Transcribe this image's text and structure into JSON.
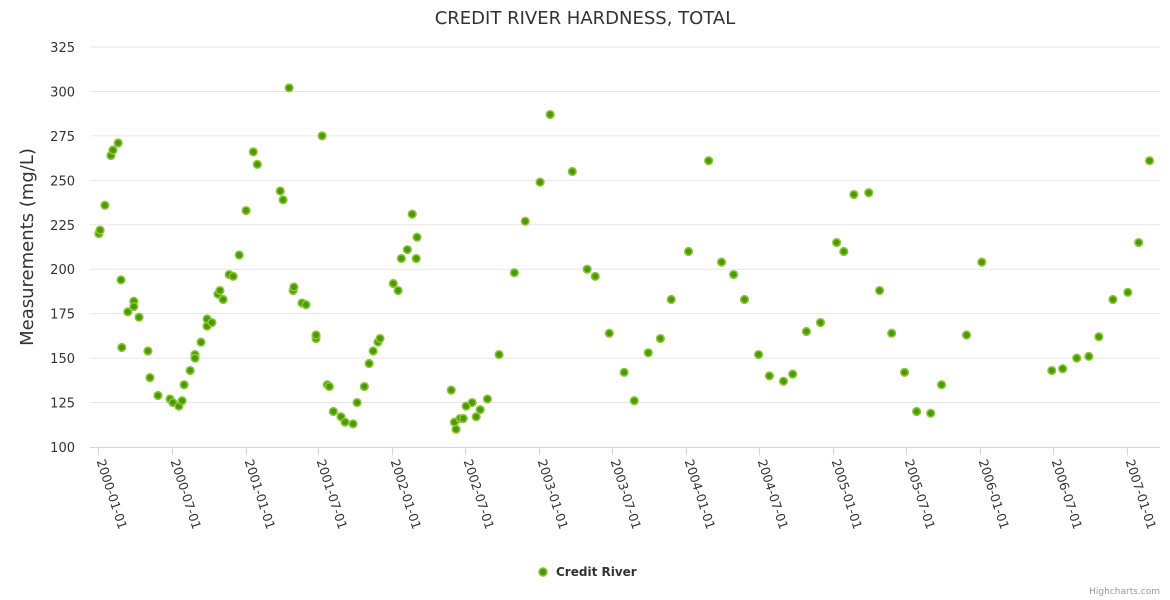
{
  "chart_data": {
    "type": "scatter",
    "title": "CREDIT RIVER HARDNESS, TOTAL",
    "xlabel": "",
    "ylabel": "Measurements (mg/L)",
    "ylim": [
      100,
      325
    ],
    "yticks": [
      100,
      125,
      150,
      175,
      200,
      225,
      250,
      275,
      300,
      325
    ],
    "xlim": [
      "1999-12-11",
      "2007-03-24"
    ],
    "xticks": [
      "2000-01-01",
      "2000-07-01",
      "2001-01-01",
      "2001-07-01",
      "2002-01-01",
      "2002-07-01",
      "2003-01-01",
      "2003-07-01",
      "2004-01-01",
      "2004-07-01",
      "2005-01-01",
      "2005-07-01",
      "2006-01-01",
      "2006-07-01",
      "2007-01-01"
    ],
    "grid": true,
    "legend_placement": "bottom-center",
    "colors": {
      "marker_fill": "#4a9a00",
      "marker_stroke": "#8cc43c"
    },
    "series": [
      {
        "name": "Credit River",
        "points": [
          [
            "2000-01-02",
            220
          ],
          [
            "2000-01-05",
            222
          ],
          [
            "2000-01-17",
            236
          ],
          [
            "2000-02-01",
            264
          ],
          [
            "2000-02-06",
            267
          ],
          [
            "2000-02-19",
            271
          ],
          [
            "2000-02-26",
            194
          ],
          [
            "2000-02-28",
            156
          ],
          [
            "2000-03-14",
            176
          ],
          [
            "2000-03-29",
            182
          ],
          [
            "2000-03-29",
            179
          ],
          [
            "2000-04-11",
            173
          ],
          [
            "2000-05-03",
            154
          ],
          [
            "2000-05-08",
            139
          ],
          [
            "2000-05-28",
            129
          ],
          [
            "2000-06-27",
            127
          ],
          [
            "2000-07-04",
            125
          ],
          [
            "2000-07-19",
            123
          ],
          [
            "2000-07-27",
            126
          ],
          [
            "2000-08-01",
            135
          ],
          [
            "2000-08-16",
            143
          ],
          [
            "2000-08-28",
            152
          ],
          [
            "2000-08-28",
            150
          ],
          [
            "2000-09-12",
            159
          ],
          [
            "2000-09-27",
            168
          ],
          [
            "2000-09-27",
            172
          ],
          [
            "2000-10-09",
            170
          ],
          [
            "2000-10-24",
            186
          ],
          [
            "2000-10-29",
            188
          ],
          [
            "2000-11-06",
            183
          ],
          [
            "2000-11-21",
            197
          ],
          [
            "2000-12-01",
            196
          ],
          [
            "2000-12-16",
            208
          ],
          [
            "2001-01-02",
            233
          ],
          [
            "2001-01-20",
            266
          ],
          [
            "2001-01-30",
            259
          ],
          [
            "2001-03-28",
            244
          ],
          [
            "2001-04-04",
            239
          ],
          [
            "2001-04-19",
            302
          ],
          [
            "2001-04-29",
            188
          ],
          [
            "2001-05-01",
            190
          ],
          [
            "2001-05-21",
            181
          ],
          [
            "2001-05-31",
            180
          ],
          [
            "2001-06-25",
            161
          ],
          [
            "2001-06-25",
            163
          ],
          [
            "2001-07-10",
            275
          ],
          [
            "2001-07-23",
            135
          ],
          [
            "2001-07-28",
            134
          ],
          [
            "2001-08-07",
            120
          ],
          [
            "2001-08-26",
            117
          ],
          [
            "2001-09-05",
            114
          ],
          [
            "2001-09-25",
            113
          ],
          [
            "2001-10-05",
            125
          ],
          [
            "2001-10-23",
            134
          ],
          [
            "2001-11-04",
            147
          ],
          [
            "2001-11-14",
            154
          ],
          [
            "2001-11-26",
            159
          ],
          [
            "2001-12-01",
            161
          ],
          [
            "2002-01-03",
            192
          ],
          [
            "2002-01-15",
            188
          ],
          [
            "2002-01-23",
            206
          ],
          [
            "2002-02-07",
            211
          ],
          [
            "2002-02-19",
            231
          ],
          [
            "2002-03-01",
            206
          ],
          [
            "2002-03-03",
            218
          ],
          [
            "2002-05-27",
            132
          ],
          [
            "2002-06-04",
            114
          ],
          [
            "2002-06-08",
            110
          ],
          [
            "2002-06-18",
            116
          ],
          [
            "2002-06-26",
            116
          ],
          [
            "2002-07-03",
            123
          ],
          [
            "2002-07-18",
            125
          ],
          [
            "2002-07-28",
            117
          ],
          [
            "2002-08-07",
            121
          ],
          [
            "2002-08-25",
            127
          ],
          [
            "2002-09-23",
            152
          ],
          [
            "2002-10-31",
            198
          ],
          [
            "2002-11-27",
            227
          ],
          [
            "2003-01-03",
            249
          ],
          [
            "2003-01-28",
            287
          ],
          [
            "2003-03-24",
            255
          ],
          [
            "2003-04-30",
            200
          ],
          [
            "2003-05-20",
            196
          ],
          [
            "2003-06-24",
            164
          ],
          [
            "2003-07-31",
            142
          ],
          [
            "2003-08-25",
            126
          ],
          [
            "2003-09-29",
            153
          ],
          [
            "2003-10-29",
            161
          ],
          [
            "2003-11-25",
            183
          ],
          [
            "2004-01-07",
            210
          ],
          [
            "2004-02-26",
            261
          ],
          [
            "2004-03-29",
            204
          ],
          [
            "2004-04-28",
            197
          ],
          [
            "2004-05-25",
            183
          ],
          [
            "2004-06-29",
            152
          ],
          [
            "2004-07-26",
            140
          ],
          [
            "2004-08-30",
            137
          ],
          [
            "2004-09-22",
            141
          ],
          [
            "2004-10-26",
            165
          ],
          [
            "2004-11-30",
            170
          ],
          [
            "2005-01-09",
            215
          ],
          [
            "2005-01-27",
            210
          ],
          [
            "2005-02-21",
            242
          ],
          [
            "2005-03-30",
            243
          ],
          [
            "2005-04-26",
            188
          ],
          [
            "2005-05-26",
            164
          ],
          [
            "2005-06-27",
            142
          ],
          [
            "2005-07-27",
            120
          ],
          [
            "2005-08-31",
            119
          ],
          [
            "2005-09-27",
            135
          ],
          [
            "2005-11-28",
            163
          ],
          [
            "2006-01-05",
            204
          ],
          [
            "2006-06-28",
            143
          ],
          [
            "2006-07-25",
            144
          ],
          [
            "2006-08-29",
            150
          ],
          [
            "2006-09-28",
            151
          ],
          [
            "2006-10-23",
            162
          ],
          [
            "2006-11-27",
            183
          ],
          [
            "2007-01-03",
            187
          ],
          [
            "2007-01-30",
            215
          ],
          [
            "2007-02-26",
            261
          ]
        ]
      }
    ],
    "credits": "Highcharts.com"
  }
}
